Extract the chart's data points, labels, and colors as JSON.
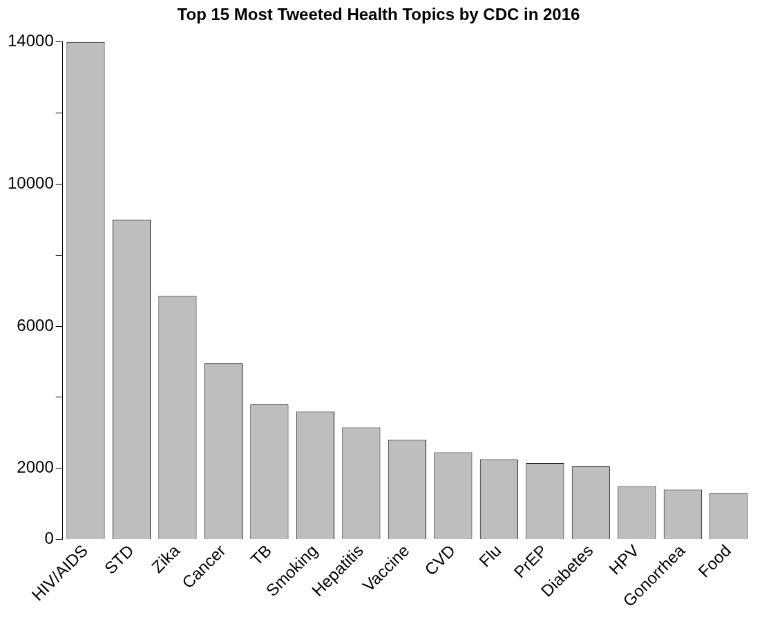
{
  "chart_data": {
    "type": "bar",
    "title": "Top 15 Most Tweeted Health Topics by CDC in 2016",
    "categories": [
      "HIV/AIDS",
      "STD",
      "Zika",
      "Cancer",
      "TB",
      "Smoking",
      "Hepatitis",
      "Vaccine",
      "CVD",
      "Flu",
      "PrEP",
      "Diabetes",
      "HPV",
      "Gonorrhea",
      "Food"
    ],
    "values": [
      14000,
      9000,
      6850,
      4950,
      3800,
      3600,
      3150,
      2800,
      2450,
      2250,
      2150,
      2050,
      1500,
      1400,
      1300
    ],
    "color": "#bebebe",
    "ylim": [
      0,
      14000
    ],
    "yticks": [
      0,
      2000,
      {
        "value": 4000,
        "label": null
      },
      6000,
      {
        "value": 8000,
        "label": null
      },
      10000,
      {
        "value": 12000,
        "label": null
      },
      14000
    ],
    "grid": false,
    "legend": false
  }
}
